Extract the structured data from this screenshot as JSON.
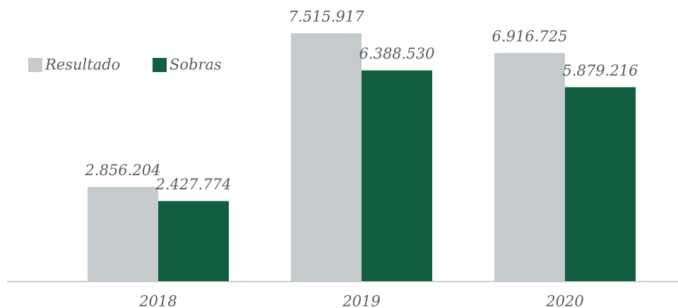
{
  "chart_data": {
    "type": "bar",
    "categories": [
      "2018",
      "2019",
      "2020"
    ],
    "series": [
      {
        "name": "Resultado",
        "color": "#c5cbcd",
        "values": [
          2856204,
          7515917,
          6916725
        ],
        "value_labels": [
          "2.856.204",
          "7.515.917",
          "6.916.725"
        ]
      },
      {
        "name": "Sobras",
        "color": "#115e40",
        "values": [
          2427774,
          6388530,
          5879216
        ],
        "value_labels": [
          "2.427.774",
          "6.388.530",
          "5.879.216"
        ]
      }
    ],
    "legend": "top-left"
  }
}
